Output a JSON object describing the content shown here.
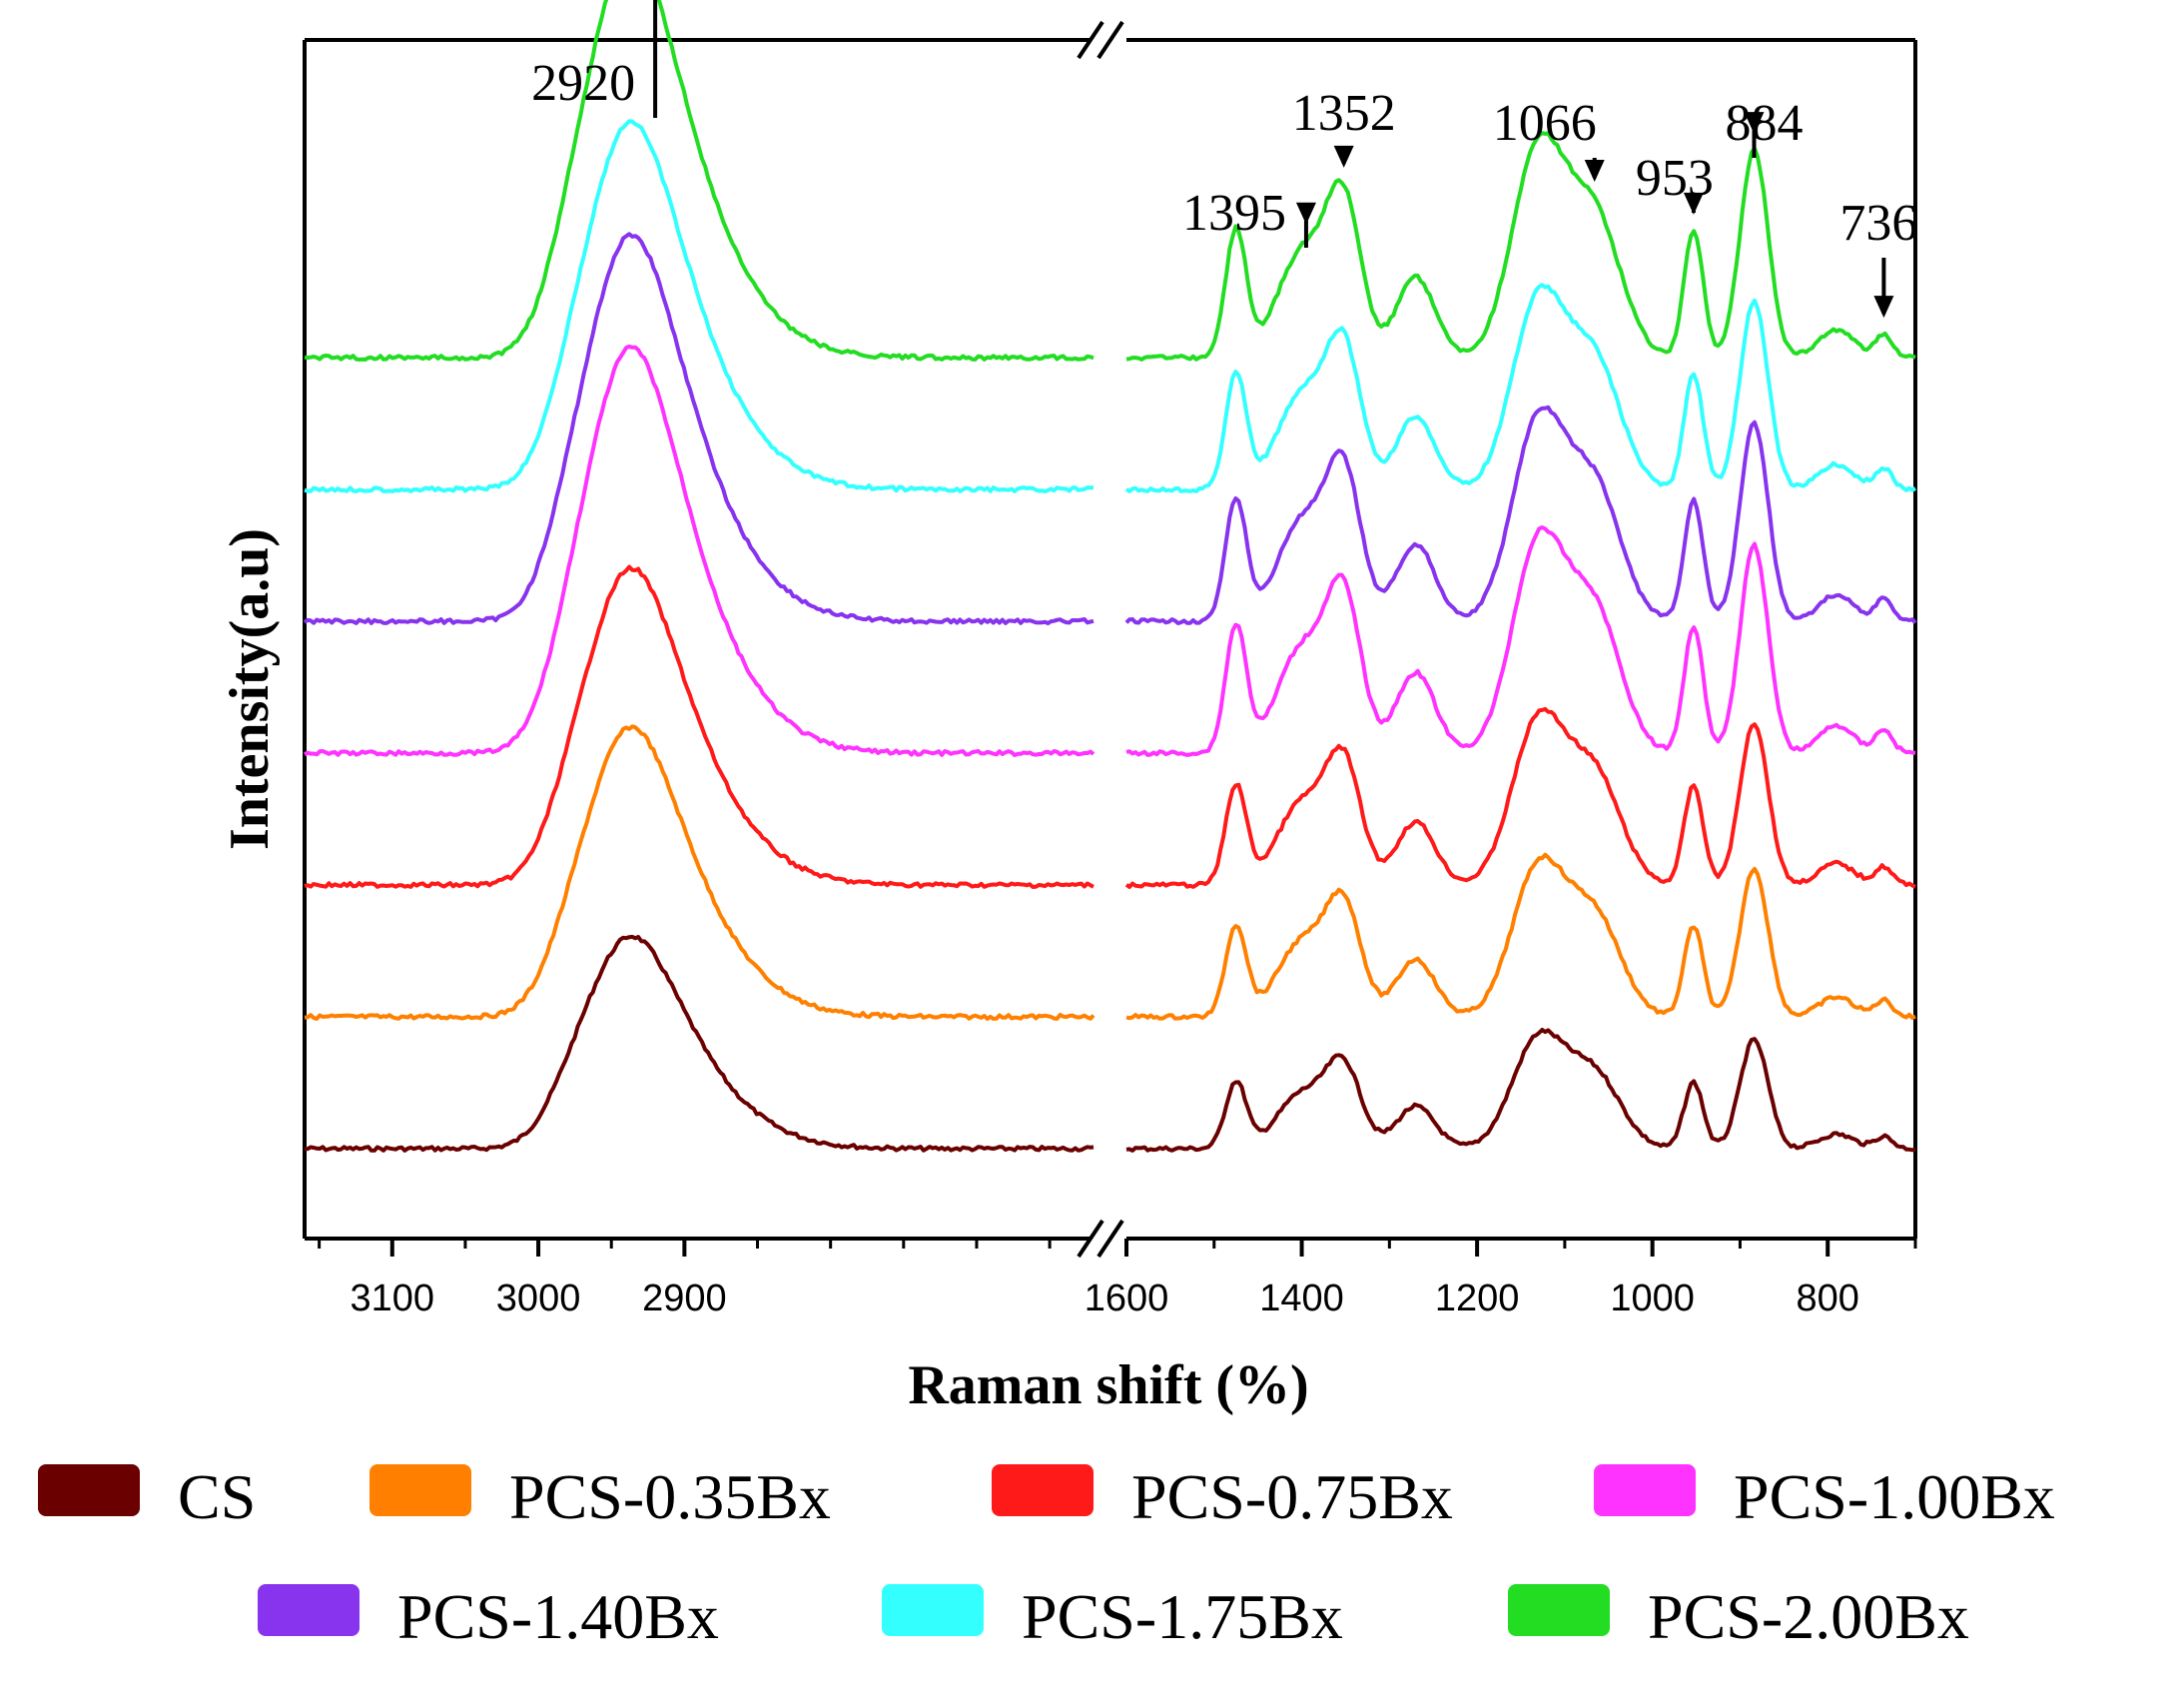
{
  "chart_data": {
    "type": "line",
    "title": "",
    "xlabel": "Raman shift (%)",
    "ylabel": "Intensity(a.u)",
    "axis_break": true,
    "panels": [
      {
        "name": "high",
        "xlim": [
          3160,
          2620
        ],
        "ticks": [
          3100,
          3000,
          2900
        ]
      },
      {
        "name": "low",
        "xlim": [
          1600,
          700
        ],
        "ticks": [
          1600,
          1400,
          1200,
          1000,
          800
        ]
      }
    ],
    "grid": false,
    "legend_position": "bottom",
    "series": [
      {
        "name": "CS",
        "color": "#6b0000",
        "offset": 0.0,
        "scale": 0.55
      },
      {
        "name": "PCS-0.35Bx",
        "color": "#ff8000",
        "offset": 1.0,
        "scale": 0.75
      },
      {
        "name": "PCS-0.75Bx",
        "color": "#ff1a1a",
        "offset": 2.0,
        "scale": 0.82
      },
      {
        "name": "PCS-1.00Bx",
        "color": "#ff33ff",
        "offset": 3.0,
        "scale": 1.05
      },
      {
        "name": "PCS-1.40Bx",
        "color": "#8833ee",
        "offset": 4.0,
        "scale": 1.0
      },
      {
        "name": "PCS-1.75Bx",
        "color": "#33ffff",
        "offset": 5.0,
        "scale": 0.95
      },
      {
        "name": "PCS-2.00Bx",
        "color": "#22dd22",
        "offset": 6.0,
        "scale": 1.05
      }
    ],
    "peaks_high": [
      {
        "center": 2920,
        "amp": 1.0,
        "width": 28
      },
      {
        "center": 2945,
        "amp": 0.85,
        "width": 22
      },
      {
        "center": 2975,
        "amp": 0.45,
        "width": 20
      },
      {
        "center": 2880,
        "amp": 0.25,
        "width": 30
      },
      {
        "center": 2860,
        "amp": 0.1,
        "width": 40
      }
    ],
    "peaks_low": [
      {
        "center": 1475,
        "amp": 0.55,
        "width": 12
      },
      {
        "center": 1400,
        "amp": 0.45,
        "width": 28
      },
      {
        "center": 1352,
        "amp": 0.65,
        "width": 20
      },
      {
        "center": 1270,
        "amp": 0.35,
        "width": 22
      },
      {
        "center": 1130,
        "amp": 0.9,
        "width": 30
      },
      {
        "center": 1066,
        "amp": 0.6,
        "width": 30
      },
      {
        "center": 953,
        "amp": 0.55,
        "width": 11
      },
      {
        "center": 884,
        "amp": 0.9,
        "width": 16
      },
      {
        "center": 790,
        "amp": 0.12,
        "width": 20
      },
      {
        "center": 736,
        "amp": 0.1,
        "width": 10
      }
    ],
    "annotations": [
      {
        "text": "2920",
        "panel": "high",
        "x": 2920
      },
      {
        "text": "1395",
        "panel": "low",
        "x": 1395
      },
      {
        "text": "1352",
        "panel": "low",
        "x": 1352
      },
      {
        "text": "1066",
        "panel": "low",
        "x": 1066
      },
      {
        "text": "953",
        "panel": "low",
        "x": 953
      },
      {
        "text": "884",
        "panel": "low",
        "x": 884
      },
      {
        "text": "736",
        "panel": "low",
        "x": 736
      }
    ]
  }
}
